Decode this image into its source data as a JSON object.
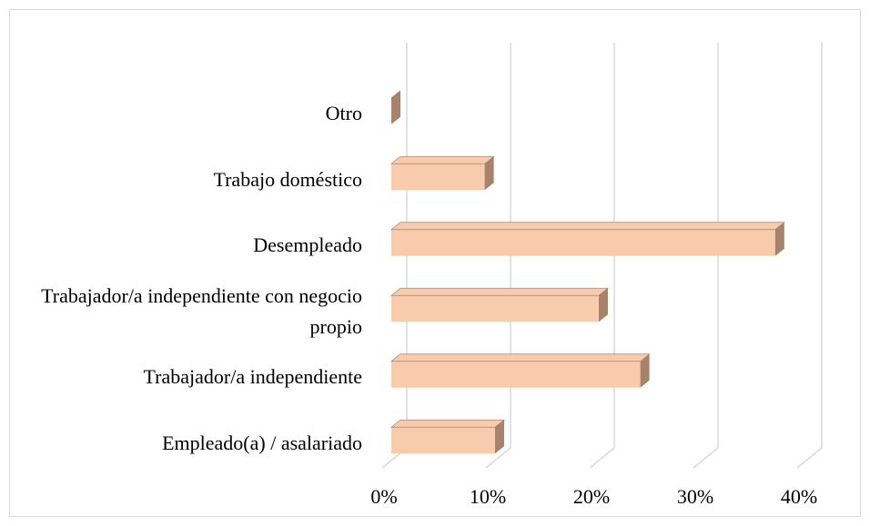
{
  "chart_data": {
    "type": "bar3d_horizontal",
    "categories": [
      "Otro",
      "Trabajo doméstico",
      "Desempleado",
      "Trabajador/a independiente con negocio propio",
      "Trabajador/a independiente",
      "Empleado(a) / asalariado"
    ],
    "values": [
      0,
      9,
      37,
      20,
      24,
      10
    ],
    "color": "#f8cbad",
    "side_color": "#a8826b",
    "xlim": [
      0,
      40
    ],
    "xticks": [
      {
        "value": 0,
        "label": "0%"
      },
      {
        "value": 10,
        "label": "10%"
      },
      {
        "value": 20,
        "label": "20%"
      },
      {
        "value": 30,
        "label": "30%"
      },
      {
        "value": 40,
        "label": "40%"
      }
    ],
    "grid": true
  }
}
